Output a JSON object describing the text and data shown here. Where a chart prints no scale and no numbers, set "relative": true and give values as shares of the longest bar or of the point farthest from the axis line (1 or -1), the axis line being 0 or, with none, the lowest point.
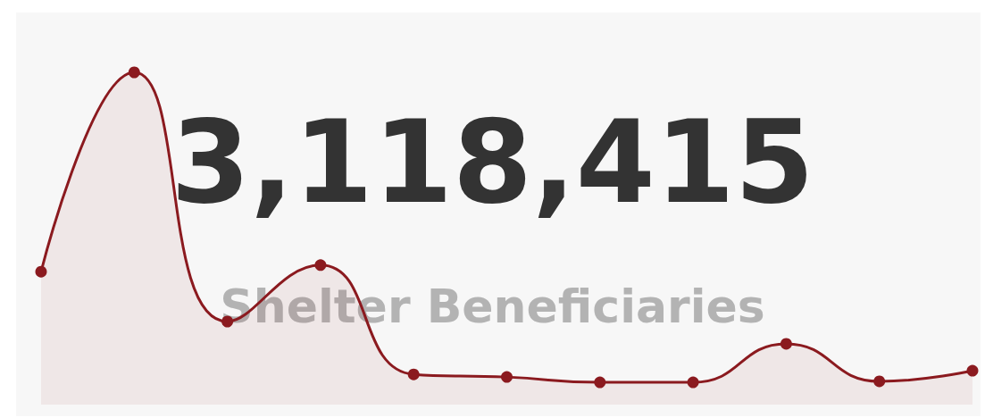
{
  "chart_data": {
    "type": "area",
    "title": "3,118,415",
    "subtitle": "Shelter Beneficiaries",
    "categories": [
      null,
      null,
      null,
      null,
      null,
      null,
      null,
      null,
      null,
      null,
      null
    ],
    "values": [
      0.4,
      1,
      0.25,
      0.42,
      0.091,
      0.083,
      0.067,
      0.067,
      0.183,
      0.07,
      0.102
    ],
    "color": "#8b1a1f",
    "relative": true,
    "marker": "circle"
  }
}
